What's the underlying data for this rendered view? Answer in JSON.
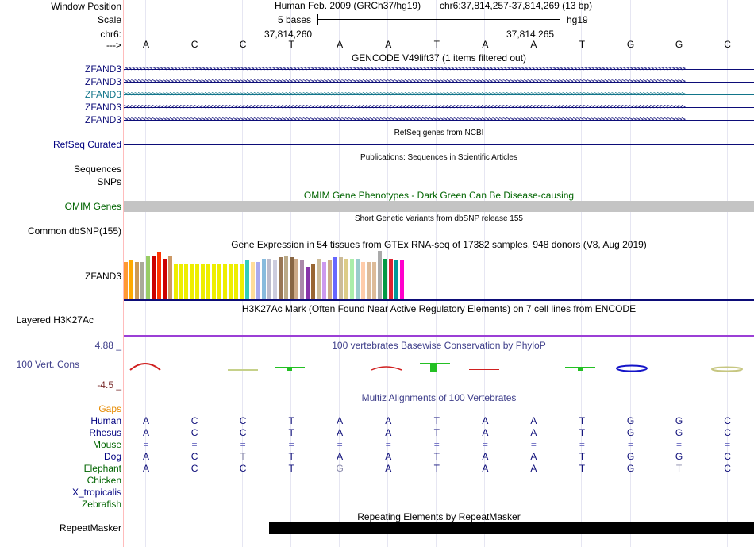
{
  "header": {
    "window_position_label": "Window Position",
    "scale_label": "Scale",
    "chrom_label": "chr6:",
    "arrow_label": "--->",
    "assembly": "Human Feb. 2009 (GRCh37/hg19)",
    "position": "chr6:37,814,257-37,814,269 (13 bp)",
    "scale_text": "5 bases",
    "db": "hg19",
    "coord_left": "37,814,260",
    "coord_right": "37,814,265"
  },
  "sequence": [
    "A",
    "C",
    "C",
    "T",
    "A",
    "A",
    "T",
    "A",
    "A",
    "T",
    "G",
    "G",
    "C"
  ],
  "tracks": {
    "gencode": {
      "title": "GENCODE V49lift37 (1 items filtered out)",
      "labels": [
        "ZFAND3",
        "ZFAND3",
        "ZFAND3",
        "ZFAND3",
        "ZFAND3"
      ],
      "colors": [
        "#0c0c78",
        "#0c0c78",
        "#12758a",
        "#0c0c78",
        "#0c0c78"
      ]
    },
    "refseq": {
      "title": "RefSeq genes from NCBI",
      "label": "RefSeq Curated"
    },
    "publications": {
      "title": "Publications: Sequences in Scientific Articles",
      "label": "Sequences"
    },
    "snps": {
      "label": "SNPs"
    },
    "omim": {
      "title": "OMIM Gene Phenotypes - Dark Green Can Be Disease-causing",
      "label": "OMIM Genes"
    },
    "dbsnp": {
      "title": "Short Genetic Variants from dbSNP release 155",
      "label": "Common dbSNP(155)"
    },
    "gtex": {
      "title": "Gene Expression in 54 tissues from GTEx RNA-seq of 17382 samples, 948 donors (V8, Aug 2019)",
      "label": "ZFAND3"
    },
    "h3k27ac": {
      "title": "H3K27Ac Mark (Often Found Near Active Regulatory Elements) on 7 cell lines from ENCODE",
      "label": "Layered H3K27Ac"
    },
    "phylop": {
      "title": "100 vertebrates Basewise Conservation by PhyloP",
      "label": "100 Vert. Cons",
      "max_label": "4.88 _",
      "min_label": "-4.5 _"
    },
    "multiz": {
      "title": "Multiz Alignments of 100 Vertebrates",
      "gaps_label": "Gaps",
      "species": [
        {
          "name": "Human",
          "bases": [
            "A",
            "C",
            "C",
            "T",
            "A",
            "A",
            "T",
            "A",
            "A",
            "T",
            "G",
            "G",
            "C"
          ]
        },
        {
          "name": "Rhesus",
          "bases": [
            "A",
            "C",
            "C",
            "T",
            "A",
            "A",
            "T",
            "A",
            "A",
            "T",
            "G",
            "G",
            "C"
          ]
        },
        {
          "name": "Mouse",
          "bases": [
            "=",
            "=",
            "=",
            "=",
            "=",
            "=",
            "=",
            "=",
            "=",
            "=",
            "=",
            "=",
            "="
          ]
        },
        {
          "name": "Dog",
          "bases": [
            "A",
            "C",
            "T",
            "T",
            "A",
            "A",
            "T",
            "A",
            "A",
            "T",
            "G",
            "G",
            "C"
          ]
        },
        {
          "name": "Elephant",
          "bases": [
            "A",
            "C",
            "C",
            "T",
            "G",
            "A",
            "T",
            "A",
            "A",
            "T",
            "G",
            "T",
            "C"
          ]
        },
        {
          "name": "Chicken",
          "bases": []
        },
        {
          "name": "X_tropicalis",
          "bases": []
        },
        {
          "name": "Zebrafish",
          "bases": []
        }
      ]
    },
    "repeatmasker": {
      "title": "Repeating Elements by RepeatMasker",
      "label": "RepeatMasker"
    }
  }
}
